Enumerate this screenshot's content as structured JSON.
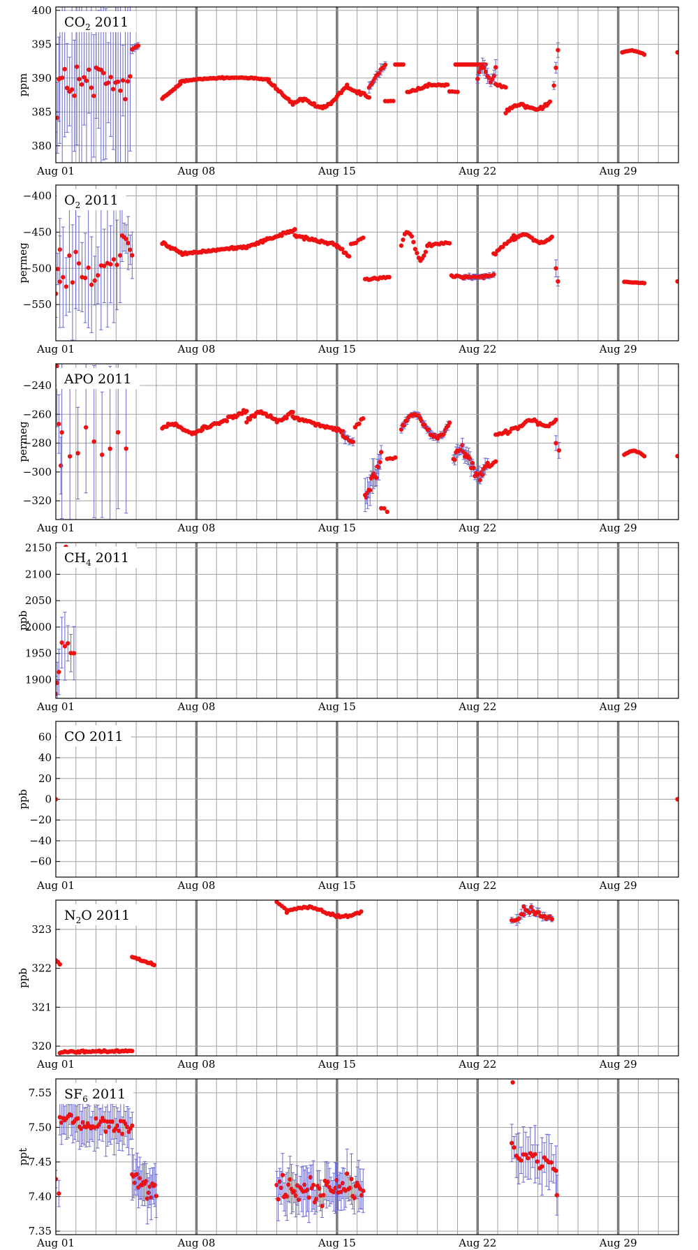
{
  "figure": {
    "x_ticks": [
      "Aug 01",
      "Aug 08",
      "Aug 15",
      "Aug 22",
      "Aug 29"
    ],
    "x_range_days": [
      1,
      32
    ],
    "colors": {
      "point": "#ee1111",
      "errorbar": "#6666cc",
      "grid": "#a0a0a0",
      "week_line": "#7a7a7a",
      "frame": "#000000"
    }
  },
  "chart_data": [
    {
      "type": "scatter",
      "title": {
        "pre": "CO",
        "sub": "2",
        "post": " 2011"
      },
      "ylabel": "ppm",
      "ylim": [
        377.5,
        400.5
      ],
      "yticks": [
        380,
        385,
        390,
        395,
        400
      ],
      "ytick_labels": [
        "380",
        "385",
        "390",
        "395",
        "400"
      ],
      "segments": [
        {
          "x0": 1.0,
          "x1": 1.15,
          "y0": 378.2,
          "y1": 390,
          "shape": "line",
          "noise": 3,
          "err": 5,
          "n": 3
        },
        {
          "x0": 1.2,
          "x1": 4.7,
          "y0": 389,
          "y1": 389,
          "shape": "line",
          "noise": 6,
          "err": 10,
          "n": 30
        },
        {
          "x0": 4.8,
          "x1": 5.1,
          "y0": 394.2,
          "y1": 394.8,
          "shape": "line",
          "noise": 0.3,
          "err": 0.5,
          "n": 4
        },
        {
          "x0": 6.3,
          "x1": 7.2,
          "y0": 387,
          "y1": 389.2,
          "shape": "line",
          "noise": 0.2,
          "n": 14
        },
        {
          "x0": 7.2,
          "x1": 11.6,
          "y0": 389.5,
          "y1": 389.8,
          "shape": "arc",
          "amp": 0.4,
          "noise": 0.15,
          "n": 60
        },
        {
          "x0": 11.6,
          "x1": 12.8,
          "y0": 389.5,
          "y1": 386.2,
          "shape": "line",
          "noise": 0.3,
          "n": 18
        },
        {
          "x0": 12.8,
          "x1": 14.7,
          "y0": 386.2,
          "y1": 386.3,
          "shape": "wave",
          "amp": 0.6,
          "noise": 0.3,
          "n": 28
        },
        {
          "x0": 14.7,
          "x1": 15.5,
          "y0": 386.3,
          "y1": 388.8,
          "shape": "line",
          "noise": 0.3,
          "n": 12
        },
        {
          "x0": 15.5,
          "x1": 16.6,
          "y0": 388.5,
          "y1": 387.2,
          "shape": "line",
          "noise": 0.4,
          "n": 14
        },
        {
          "x0": 16.6,
          "x1": 17.4,
          "y0": 388.5,
          "y1": 392,
          "shape": "line",
          "noise": 0.6,
          "err": 0.6,
          "n": 12
        },
        {
          "x0": 17.4,
          "x1": 17.8,
          "y0": 386.6,
          "y1": 386.6,
          "shape": "line",
          "noise": 0.1,
          "n": 4
        },
        {
          "x0": 17.9,
          "x1": 18.3,
          "y0": 392,
          "y1": 392,
          "shape": "line",
          "noise": 0,
          "n": 6
        },
        {
          "x0": 18.5,
          "x1": 19.5,
          "y0": 387.8,
          "y1": 388.8,
          "shape": "line",
          "noise": 0.3,
          "n": 12
        },
        {
          "x0": 19.5,
          "x1": 20.5,
          "y0": 389,
          "y1": 389,
          "shape": "line",
          "noise": 0.2,
          "n": 14
        },
        {
          "x0": 20.6,
          "x1": 21.0,
          "y0": 388,
          "y1": 388,
          "shape": "line",
          "noise": 0.1,
          "n": 4
        },
        {
          "x0": 20.9,
          "x1": 22.4,
          "y0": 392,
          "y1": 392,
          "shape": "line",
          "noise": 0,
          "n": 22
        },
        {
          "x0": 22.0,
          "x1": 22.9,
          "y0": 390,
          "y1": 391.5,
          "shape": "wave",
          "amp": 1.5,
          "noise": 0.4,
          "err": 0.8,
          "n": 12
        },
        {
          "x0": 22.9,
          "x1": 23.4,
          "y0": 389,
          "y1": 388.5,
          "shape": "line",
          "noise": 0.5,
          "n": 6
        },
        {
          "x0": 23.4,
          "x1": 25.6,
          "y0": 385,
          "y1": 386.5,
          "shape": "wave",
          "amp": 0.6,
          "noise": 0.3,
          "n": 30
        },
        {
          "x0": 25.8,
          "x1": 26.0,
          "y0": 389,
          "y1": 394.2,
          "shape": "line",
          "noise": 0.3,
          "err": 1,
          "n": 3
        },
        {
          "x0": 29.2,
          "x1": 30.3,
          "y0": 393.8,
          "y1": 393.5,
          "shape": "arc",
          "amp": 0.4,
          "noise": 0.1,
          "n": 12
        },
        {
          "x0": 31.95,
          "x1": 31.95,
          "y0": 393.8,
          "y1": 393.8,
          "shape": "line",
          "noise": 0,
          "n": 1
        }
      ]
    },
    {
      "type": "scatter",
      "title": {
        "pre": "O",
        "sub": "2",
        "post": " 2011"
      },
      "ylabel": "permeg",
      "ylim": [
        -600,
        -385
      ],
      "yticks": [
        -550,
        -500,
        -450,
        -400
      ],
      "ytick_labels": [
        "−550",
        "−500",
        "−450",
        "−400"
      ],
      "segments": [
        {
          "x0": 1.0,
          "x1": 1.2,
          "y0": -540,
          "y1": -470,
          "shape": "line",
          "noise": 20,
          "err": 40,
          "n": 3
        },
        {
          "x0": 1.2,
          "x1": 4.2,
          "y0": -500,
          "y1": -480,
          "shape": "line",
          "noise": 55,
          "err": 60,
          "n": 20
        },
        {
          "x0": 4.3,
          "x1": 4.8,
          "y0": -450,
          "y1": -478,
          "shape": "line",
          "noise": 10,
          "err": 25,
          "n": 6
        },
        {
          "x0": 6.3,
          "x1": 7.3,
          "y0": -465,
          "y1": -480,
          "shape": "line",
          "noise": 3,
          "n": 15
        },
        {
          "x0": 7.3,
          "x1": 10.5,
          "y0": -480,
          "y1": -470,
          "shape": "line",
          "noise": 2,
          "n": 45
        },
        {
          "x0": 10.5,
          "x1": 12.9,
          "y0": -470,
          "y1": -447,
          "shape": "line",
          "noise": 3,
          "n": 34
        },
        {
          "x0": 12.9,
          "x1": 15.0,
          "y0": -455,
          "y1": -468,
          "shape": "line",
          "noise": 3,
          "n": 28
        },
        {
          "x0": 15.0,
          "x1": 15.6,
          "y0": -470,
          "y1": -482,
          "shape": "line",
          "noise": 3,
          "n": 8
        },
        {
          "x0": 15.7,
          "x1": 16.3,
          "y0": -468,
          "y1": -458,
          "shape": "line",
          "noise": 3,
          "n": 6
        },
        {
          "x0": 16.4,
          "x1": 17.6,
          "y0": -515,
          "y1": -512,
          "shape": "line",
          "noise": 3,
          "n": 14
        },
        {
          "x0": 18.2,
          "x1": 19.5,
          "y0": -468,
          "y1": -470,
          "shape": "wave",
          "amp": 18,
          "noise": 3,
          "n": 16
        },
        {
          "x0": 19.5,
          "x1": 20.6,
          "y0": -468,
          "y1": -465,
          "shape": "line",
          "noise": 3,
          "n": 12
        },
        {
          "x0": 20.7,
          "x1": 21.3,
          "y0": -510,
          "y1": -512,
          "shape": "line",
          "noise": 3,
          "n": 8
        },
        {
          "x0": 21.3,
          "x1": 22.8,
          "y0": -512,
          "y1": -510,
          "shape": "line",
          "noise": 3,
          "err": 3,
          "n": 22
        },
        {
          "x0": 22.8,
          "x1": 23.8,
          "y0": -480,
          "y1": -455,
          "shape": "line",
          "noise": 5,
          "n": 12
        },
        {
          "x0": 23.8,
          "x1": 25.7,
          "y0": -460,
          "y1": -458,
          "shape": "wave",
          "amp": 6,
          "noise": 3,
          "n": 26
        },
        {
          "x0": 25.9,
          "x1": 26.0,
          "y0": -500,
          "y1": -518,
          "shape": "line",
          "noise": 0,
          "err": 8,
          "n": 2
        },
        {
          "x0": 29.3,
          "x1": 30.3,
          "y0": -519,
          "y1": -520,
          "shape": "line",
          "noise": 1,
          "n": 12
        },
        {
          "x0": 31.95,
          "x1": 31.95,
          "y0": -518,
          "y1": -518,
          "shape": "line",
          "noise": 0,
          "n": 1
        }
      ]
    },
    {
      "type": "scatter",
      "title": {
        "pre": "APO",
        "sub": "",
        "post": " 2011"
      },
      "ylabel": "permeg",
      "ylim": [
        -333,
        -225
      ],
      "yticks": [
        -320,
        -300,
        -280,
        -260,
        -240
      ],
      "ytick_labels": [
        "−320",
        "−300",
        "−280",
        "−260",
        "−240"
      ],
      "segments": [
        {
          "x0": 1.05,
          "x1": 1.25,
          "y0": -230,
          "y1": -298,
          "shape": "line",
          "noise": 5,
          "err": 30,
          "n": 3
        },
        {
          "x0": 1.3,
          "x1": 4.5,
          "y0": -285,
          "y1": -275,
          "shape": "line",
          "noise": 25,
          "err": 50,
          "n": 9
        },
        {
          "x0": 6.3,
          "x1": 8.3,
          "y0": -270,
          "y1": -270,
          "shape": "wave",
          "amp": 3,
          "noise": 1.5,
          "n": 28
        },
        {
          "x0": 8.3,
          "x1": 10.5,
          "y0": -270,
          "y1": -258,
          "shape": "line",
          "noise": 2,
          "n": 30
        },
        {
          "x0": 10.5,
          "x1": 12.8,
          "y0": -265,
          "y1": -258,
          "shape": "wave",
          "amp": 4,
          "noise": 2,
          "n": 30
        },
        {
          "x0": 12.8,
          "x1": 15.3,
          "y0": -262,
          "y1": -272,
          "shape": "line",
          "noise": 2,
          "n": 32
        },
        {
          "x0": 15.3,
          "x1": 15.8,
          "y0": -275,
          "y1": -280,
          "shape": "line",
          "noise": 2,
          "err": 3,
          "n": 6
        },
        {
          "x0": 15.9,
          "x1": 16.3,
          "y0": -270,
          "y1": -262,
          "shape": "line",
          "noise": 2,
          "n": 5
        },
        {
          "x0": 16.4,
          "x1": 17.2,
          "y0": -320,
          "y1": -290,
          "shape": "line",
          "noise": 8,
          "err": 8,
          "n": 14
        },
        {
          "x0": 17.2,
          "x1": 17.5,
          "y0": -325,
          "y1": -327,
          "shape": "line",
          "noise": 1,
          "n": 3
        },
        {
          "x0": 17.5,
          "x1": 17.9,
          "y0": -291,
          "y1": -290,
          "shape": "line",
          "noise": 1,
          "n": 4
        },
        {
          "x0": 18.2,
          "x1": 20.6,
          "y0": -270,
          "y1": -266,
          "shape": "wave",
          "amp": 9,
          "noise": 2,
          "err": 2,
          "n": 34
        },
        {
          "x0": 20.8,
          "x1": 22.5,
          "y0": -290,
          "y1": -295,
          "shape": "wave",
          "amp": 7,
          "noise": 6,
          "err": 4,
          "n": 28
        },
        {
          "x0": 22.5,
          "x1": 22.9,
          "y0": -297,
          "y1": -293,
          "shape": "line",
          "noise": 3,
          "n": 5
        },
        {
          "x0": 22.9,
          "x1": 24.2,
          "y0": -275,
          "y1": -268,
          "shape": "line",
          "noise": 2,
          "n": 14
        },
        {
          "x0": 24.2,
          "x1": 25.9,
          "y0": -268,
          "y1": -264,
          "shape": "wave",
          "amp": 3,
          "noise": 2,
          "n": 20
        },
        {
          "x0": 25.9,
          "x1": 26.05,
          "y0": -280,
          "y1": -285,
          "shape": "line",
          "noise": 0,
          "err": 4,
          "n": 2
        },
        {
          "x0": 29.3,
          "x1": 30.3,
          "y0": -288,
          "y1": -289,
          "shape": "arc",
          "amp": 3,
          "noise": 0.5,
          "n": 12
        },
        {
          "x0": 31.95,
          "x1": 31.95,
          "y0": -289,
          "y1": -289,
          "shape": "line",
          "noise": 0,
          "n": 1
        }
      ]
    },
    {
      "type": "scatter",
      "title": {
        "pre": "CH",
        "sub": "4",
        "post": " 2011"
      },
      "ylabel": "ppb",
      "ylim": [
        1865,
        2160
      ],
      "yticks": [
        1900,
        1950,
        2000,
        2050,
        2100,
        2150
      ],
      "ytick_labels": [
        "1900",
        "1950",
        "2000",
        "2050",
        "2100",
        "2150"
      ],
      "segments": [
        {
          "x0": 1.0,
          "x1": 1.15,
          "y0": 1875,
          "y1": 1915,
          "shape": "line",
          "noise": 5,
          "err": 30,
          "n": 3
        },
        {
          "x0": 1.3,
          "x1": 1.9,
          "y0": 1970,
          "y1": 1950,
          "shape": "line",
          "noise": 20,
          "err": 60,
          "n": 5
        },
        {
          "x0": 1.5,
          "x1": 1.5,
          "y0": 2152,
          "y1": 2152,
          "shape": "line",
          "noise": 0,
          "n": 1
        }
      ]
    },
    {
      "type": "scatter",
      "title": {
        "pre": "CO",
        "sub": "",
        "post": " 2011"
      },
      "ylabel": "ppb",
      "ylim": [
        -75,
        75
      ],
      "yticks": [
        -60,
        -40,
        -20,
        0,
        20,
        40,
        60
      ],
      "ytick_labels": [
        "−60",
        "−40",
        "−20",
        "0",
        "20",
        "40",
        "60"
      ],
      "segments": [
        {
          "x0": 1.0,
          "x1": 1.0,
          "y0": 0,
          "y1": 0,
          "shape": "line",
          "noise": 0,
          "n": 1
        },
        {
          "x0": 31.95,
          "x1": 31.95,
          "y0": 0,
          "y1": 0,
          "shape": "line",
          "noise": 0,
          "n": 1
        }
      ]
    },
    {
      "type": "scatter",
      "title": {
        "pre": "N",
        "sub": "2",
        "post": "O 2011"
      },
      "ylabel": "ppb",
      "ylim": [
        319.75,
        323.75
      ],
      "yticks": [
        320,
        321,
        322,
        323
      ],
      "ytick_labels": [
        "320",
        "321",
        "322",
        "323"
      ],
      "segments": [
        {
          "x0": 1.0,
          "x1": 1.2,
          "y0": 322.2,
          "y1": 322.1,
          "shape": "line",
          "noise": 0.02,
          "n": 3
        },
        {
          "x0": 1.2,
          "x1": 4.8,
          "y0": 319.85,
          "y1": 319.88,
          "shape": "line",
          "noise": 0.04,
          "n": 45
        },
        {
          "x0": 4.8,
          "x1": 5.9,
          "y0": 322.3,
          "y1": 322.08,
          "shape": "line",
          "noise": 0.04,
          "n": 14
        },
        {
          "x0": 12.0,
          "x1": 12.5,
          "y0": 323.7,
          "y1": 323.5,
          "shape": "line",
          "noise": 0.03,
          "n": 5
        },
        {
          "x0": 12.5,
          "x1": 16.2,
          "y0": 323.45,
          "y1": 323.45,
          "shape": "wave",
          "amp": 0.12,
          "noise": 0.04,
          "n": 40
        },
        {
          "x0": 23.7,
          "x1": 24.3,
          "y0": 323.2,
          "y1": 323.4,
          "shape": "line",
          "noise": 0.1,
          "err": 0.1,
          "n": 6
        },
        {
          "x0": 24.3,
          "x1": 25.7,
          "y0": 323.6,
          "y1": 323.25,
          "shape": "line",
          "noise": 0.15,
          "err": 0.08,
          "n": 16
        }
      ]
    },
    {
      "type": "scatter",
      "title": {
        "pre": "SF",
        "sub": "6",
        "post": " 2011"
      },
      "ylabel": "ppt",
      "ylim": [
        7.345,
        7.57
      ],
      "yticks": [
        7.35,
        7.4,
        7.45,
        7.5,
        7.55
      ],
      "ytick_labels": [
        "7.35",
        "7.40",
        "7.45",
        "7.50",
        "7.55"
      ],
      "segments": [
        {
          "x0": 1.0,
          "x1": 1.15,
          "y0": 7.425,
          "y1": 7.405,
          "shape": "line",
          "noise": 0.005,
          "err": 0.015,
          "n": 2
        },
        {
          "x0": 1.2,
          "x1": 4.8,
          "y0": 7.51,
          "y1": 7.5,
          "shape": "line",
          "noise": 0.017,
          "err": 0.025,
          "n": 45
        },
        {
          "x0": 4.8,
          "x1": 6.0,
          "y0": 7.43,
          "y1": 7.41,
          "shape": "line",
          "noise": 0.025,
          "err": 0.025,
          "n": 20
        },
        {
          "x0": 12.0,
          "x1": 16.3,
          "y0": 7.41,
          "y1": 7.41,
          "shape": "line",
          "noise": 0.03,
          "err": 0.025,
          "n": 60
        },
        {
          "x0": 23.7,
          "x1": 25.9,
          "y0": 7.47,
          "y1": 7.44,
          "shape": "line",
          "noise": 0.018,
          "err": 0.03,
          "n": 20
        },
        {
          "x0": 23.75,
          "x1": 23.75,
          "y0": 7.565,
          "y1": 7.565,
          "shape": "line",
          "noise": 0,
          "n": 1
        },
        {
          "x0": 25.95,
          "x1": 25.95,
          "y0": 7.402,
          "y1": 7.402,
          "shape": "line",
          "noise": 0,
          "err": 0.02,
          "n": 1
        }
      ]
    }
  ]
}
